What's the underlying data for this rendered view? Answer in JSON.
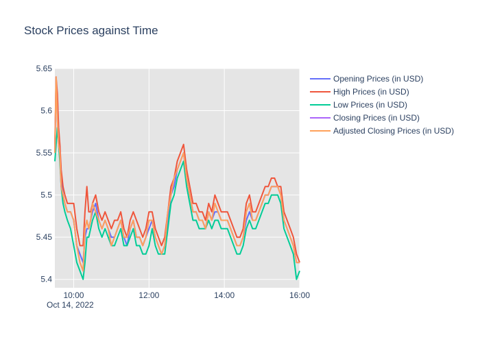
{
  "chart_data": {
    "type": "line",
    "title": "Stock Prices against Time",
    "xlabel": "",
    "ylabel": "",
    "date_label": "Oct 14, 2022",
    "x_range": [
      "09:30",
      "16:00"
    ],
    "ylim": [
      5.39,
      5.65
    ],
    "x_ticks": [
      "10:00",
      "12:00",
      "14:00",
      "16:00"
    ],
    "y_ticks": [
      "5.4",
      "5.45",
      "5.5",
      "5.55",
      "5.6",
      "5.65"
    ],
    "grid": true,
    "legend_position": "top-right",
    "x": [
      "09:30",
      "09:32",
      "09:34",
      "09:36",
      "09:38",
      "09:40",
      "09:43",
      "09:46",
      "09:50",
      "09:55",
      "10:00",
      "10:05",
      "10:10",
      "10:15",
      "10:18",
      "10:21",
      "10:24",
      "10:27",
      "10:30",
      "10:35",
      "10:40",
      "10:45",
      "10:50",
      "10:55",
      "11:00",
      "11:05",
      "11:10",
      "11:15",
      "11:20",
      "11:25",
      "11:30",
      "11:35",
      "11:40",
      "11:45",
      "11:50",
      "11:55",
      "12:00",
      "12:05",
      "12:10",
      "12:15",
      "12:20",
      "12:25",
      "12:30",
      "12:35",
      "12:40",
      "12:45",
      "12:50",
      "12:55",
      "13:00",
      "13:05",
      "13:10",
      "13:15",
      "13:20",
      "13:25",
      "13:30",
      "13:35",
      "13:40",
      "13:45",
      "13:50",
      "13:55",
      "14:00",
      "14:05",
      "14:10",
      "14:15",
      "14:20",
      "14:25",
      "14:30",
      "14:35",
      "14:40",
      "14:45",
      "14:50",
      "14:55",
      "15:00",
      "15:05",
      "15:10",
      "15:15",
      "15:20",
      "15:25",
      "15:30",
      "15:35",
      "15:40",
      "15:45",
      "15:50",
      "15:55",
      "16:00"
    ],
    "series": [
      {
        "name": "Opening Prices (in USD)",
        "color": "#636efa",
        "values": [
          5.55,
          5.63,
          5.6,
          5.57,
          5.55,
          5.52,
          5.5,
          5.49,
          5.48,
          5.48,
          5.47,
          5.44,
          5.43,
          5.42,
          5.45,
          5.46,
          5.46,
          5.47,
          5.48,
          5.49,
          5.47,
          5.46,
          5.47,
          5.46,
          5.45,
          5.45,
          5.46,
          5.47,
          5.45,
          5.44,
          5.46,
          5.47,
          5.45,
          5.45,
          5.44,
          5.45,
          5.46,
          5.47,
          5.45,
          5.44,
          5.43,
          5.44,
          5.47,
          5.5,
          5.51,
          5.53,
          5.54,
          5.55,
          5.52,
          5.5,
          5.48,
          5.48,
          5.47,
          5.47,
          5.46,
          5.48,
          5.47,
          5.48,
          5.48,
          5.47,
          5.47,
          5.47,
          5.46,
          5.45,
          5.44,
          5.44,
          5.45,
          5.47,
          5.48,
          5.47,
          5.47,
          5.48,
          5.49,
          5.5,
          5.5,
          5.51,
          5.51,
          5.51,
          5.5,
          5.47,
          5.46,
          5.45,
          5.44,
          5.42,
          5.42
        ]
      },
      {
        "name": "High Prices (in USD)",
        "color": "#ef553b",
        "values": [
          5.56,
          5.64,
          5.62,
          5.58,
          5.56,
          5.53,
          5.51,
          5.5,
          5.49,
          5.49,
          5.49,
          5.46,
          5.44,
          5.44,
          5.48,
          5.51,
          5.48,
          5.48,
          5.49,
          5.5,
          5.48,
          5.47,
          5.48,
          5.47,
          5.46,
          5.47,
          5.47,
          5.48,
          5.46,
          5.45,
          5.47,
          5.48,
          5.47,
          5.46,
          5.45,
          5.46,
          5.48,
          5.48,
          5.46,
          5.45,
          5.44,
          5.45,
          5.48,
          5.51,
          5.52,
          5.54,
          5.55,
          5.56,
          5.53,
          5.51,
          5.49,
          5.49,
          5.48,
          5.48,
          5.47,
          5.49,
          5.48,
          5.5,
          5.49,
          5.48,
          5.48,
          5.48,
          5.47,
          5.46,
          5.45,
          5.45,
          5.46,
          5.49,
          5.5,
          5.48,
          5.48,
          5.49,
          5.5,
          5.51,
          5.51,
          5.52,
          5.52,
          5.51,
          5.51,
          5.48,
          5.47,
          5.46,
          5.45,
          5.43,
          5.42
        ]
      },
      {
        "name": "Low Prices (in USD)",
        "color": "#00cc96",
        "values": [
          5.54,
          5.56,
          5.58,
          5.56,
          5.54,
          5.51,
          5.49,
          5.48,
          5.47,
          5.46,
          5.44,
          5.42,
          5.41,
          5.4,
          5.42,
          5.45,
          5.45,
          5.46,
          5.47,
          5.48,
          5.46,
          5.45,
          5.46,
          5.45,
          5.44,
          5.44,
          5.45,
          5.46,
          5.44,
          5.44,
          5.45,
          5.46,
          5.44,
          5.44,
          5.43,
          5.43,
          5.44,
          5.46,
          5.44,
          5.43,
          5.43,
          5.43,
          5.46,
          5.49,
          5.5,
          5.52,
          5.53,
          5.54,
          5.51,
          5.49,
          5.47,
          5.47,
          5.46,
          5.46,
          5.46,
          5.47,
          5.46,
          5.47,
          5.47,
          5.46,
          5.46,
          5.46,
          5.45,
          5.44,
          5.43,
          5.43,
          5.44,
          5.46,
          5.47,
          5.46,
          5.46,
          5.47,
          5.48,
          5.49,
          5.49,
          5.5,
          5.5,
          5.5,
          5.49,
          5.46,
          5.45,
          5.44,
          5.43,
          5.4,
          5.41
        ]
      },
      {
        "name": "Closing Prices (in USD)",
        "color": "#ab63fa",
        "values": [
          5.55,
          5.64,
          5.59,
          5.56,
          5.55,
          5.51,
          5.5,
          5.49,
          5.48,
          5.48,
          5.47,
          5.44,
          5.42,
          5.41,
          5.46,
          5.47,
          5.46,
          5.47,
          5.49,
          5.48,
          5.47,
          5.46,
          5.47,
          5.46,
          5.44,
          5.45,
          5.46,
          5.47,
          5.45,
          5.45,
          5.46,
          5.47,
          5.45,
          5.45,
          5.44,
          5.45,
          5.47,
          5.47,
          5.45,
          5.44,
          5.43,
          5.44,
          5.48,
          5.5,
          5.52,
          5.53,
          5.54,
          5.55,
          5.52,
          5.5,
          5.48,
          5.48,
          5.47,
          5.47,
          5.46,
          5.48,
          5.47,
          5.49,
          5.48,
          5.47,
          5.47,
          5.47,
          5.46,
          5.45,
          5.44,
          5.44,
          5.45,
          5.48,
          5.49,
          5.47,
          5.47,
          5.48,
          5.49,
          5.5,
          5.5,
          5.51,
          5.51,
          5.51,
          5.5,
          5.47,
          5.46,
          5.45,
          5.44,
          5.42,
          5.42
        ]
      },
      {
        "name": "Adjusted Closing Prices (in USD)",
        "color": "#ffa15a",
        "values": [
          5.55,
          5.64,
          5.59,
          5.56,
          5.55,
          5.51,
          5.5,
          5.49,
          5.48,
          5.48,
          5.47,
          5.44,
          5.42,
          5.41,
          5.46,
          5.47,
          5.46,
          5.47,
          5.49,
          5.48,
          5.47,
          5.46,
          5.47,
          5.46,
          5.44,
          5.45,
          5.46,
          5.47,
          5.45,
          5.45,
          5.46,
          5.47,
          5.45,
          5.45,
          5.44,
          5.45,
          5.47,
          5.47,
          5.45,
          5.44,
          5.43,
          5.44,
          5.48,
          5.5,
          5.52,
          5.53,
          5.54,
          5.55,
          5.52,
          5.5,
          5.48,
          5.48,
          5.47,
          5.47,
          5.46,
          5.48,
          5.47,
          5.49,
          5.48,
          5.47,
          5.47,
          5.47,
          5.46,
          5.45,
          5.44,
          5.44,
          5.45,
          5.48,
          5.49,
          5.47,
          5.47,
          5.48,
          5.49,
          5.5,
          5.5,
          5.51,
          5.51,
          5.51,
          5.5,
          5.47,
          5.46,
          5.45,
          5.44,
          5.42,
          5.42
        ]
      }
    ]
  }
}
